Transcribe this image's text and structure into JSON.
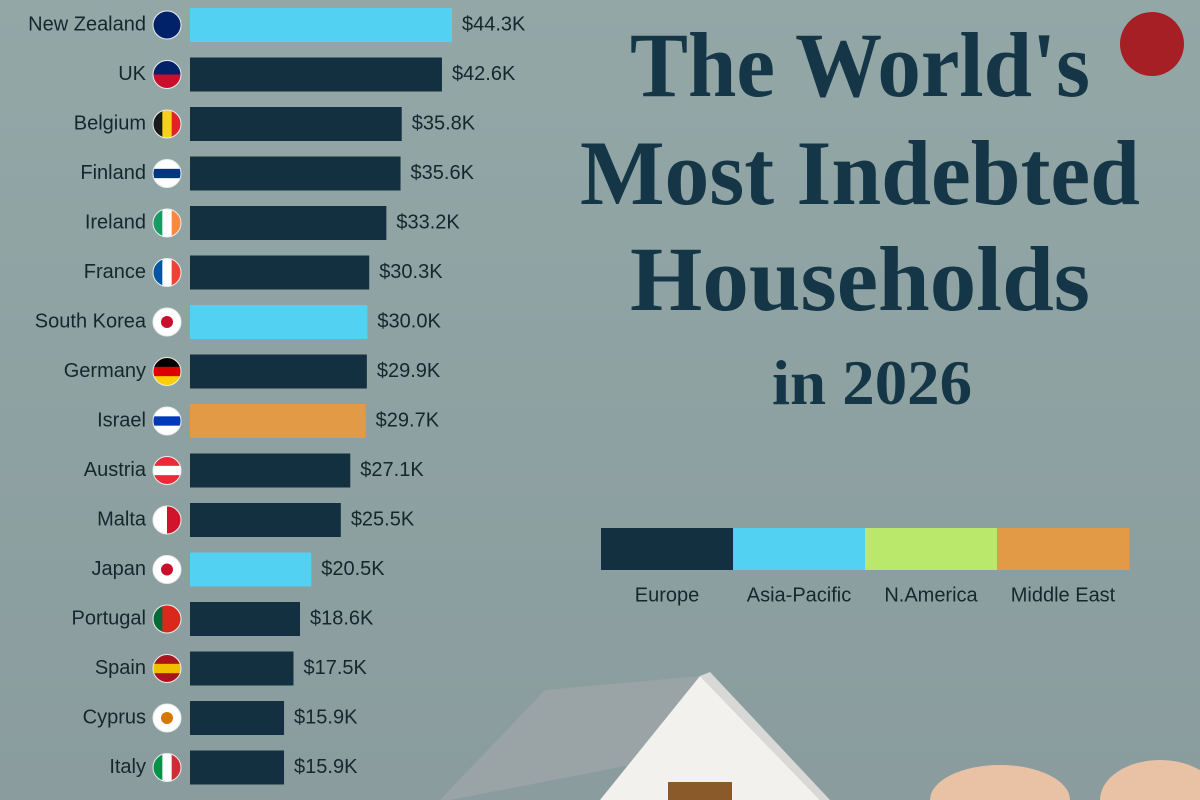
{
  "chart_data": {
    "type": "bar",
    "orientation": "horizontal",
    "title_lines": [
      "The World's",
      "Most Indebted",
      "Households"
    ],
    "subtitle": "in 2026",
    "categories": [
      "New Zealand",
      "UK",
      "Belgium",
      "Finland",
      "Ireland",
      "France",
      "South Korea",
      "Germany",
      "Israel",
      "Austria",
      "Malta",
      "Japan",
      "Portugal",
      "Spain",
      "Cyprus",
      "Italy"
    ],
    "values": [
      44.3,
      42.6,
      35.8,
      35.6,
      33.2,
      30.3,
      30.0,
      29.9,
      29.7,
      27.1,
      25.5,
      20.5,
      18.6,
      17.5,
      15.9,
      15.9
    ],
    "value_labels": [
      "$44.3K",
      "$42.6K",
      "$35.8K",
      "$35.6K",
      "$33.2K",
      "$30.3K",
      "$30.0K",
      "$29.9K",
      "$29.7K",
      "$27.1K",
      "$25.5K",
      "$20.5K",
      "$18.6K",
      "$17.5K",
      "$15.9K",
      "$15.9K"
    ],
    "colors": [
      "#52d1f2",
      "#12303f",
      "#12303f",
      "#12303f",
      "#12303f",
      "#12303f",
      "#52d1f2",
      "#12303f",
      "#e39a47",
      "#12303f",
      "#12303f",
      "#52d1f2",
      "#12303f",
      "#12303f",
      "#12303f",
      "#12303f"
    ],
    "legend": [
      {
        "name": "Europe",
        "color": "#12303f"
      },
      {
        "name": "Asia-Pacific",
        "color": "#52d1f2"
      },
      {
        "name": "N.America",
        "color": "#b9e86a"
      },
      {
        "name": "Middle East",
        "color": "#e39a47"
      }
    ]
  }
}
